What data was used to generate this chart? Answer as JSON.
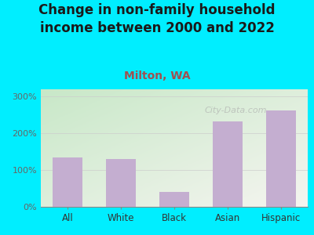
{
  "title": "Change in non-family household\nincome between 2000 and 2022",
  "subtitle": "Milton, WA",
  "categories": [
    "All",
    "White",
    "Black",
    "Asian",
    "Hispanic"
  ],
  "values": [
    135,
    130,
    40,
    232,
    263
  ],
  "bar_color": "#c4aed0",
  "title_fontsize": 12,
  "subtitle_fontsize": 10,
  "subtitle_color": "#a05050",
  "title_color": "#1a1a1a",
  "background_color": "#00eeff",
  "ylim": [
    0,
    320
  ],
  "yticks": [
    0,
    100,
    200,
    300
  ],
  "ytick_labels": [
    "0%",
    "100%",
    "200%",
    "300%"
  ],
  "watermark": "City-Data.com",
  "grad_top_left": "#c8e8c8",
  "grad_bottom_right": "#f5f5f0"
}
